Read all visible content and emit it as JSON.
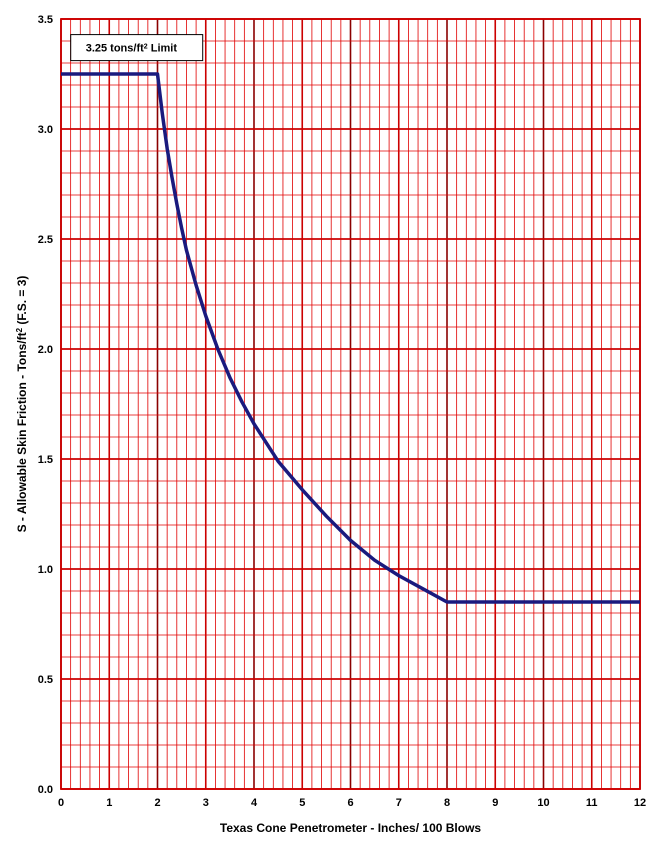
{
  "chart_data": {
    "type": "line",
    "xlabel": "Texas Cone Penetrometer - Inches/ 100 Blows",
    "ylabel_parts": {
      "before_sup1": "S - Allowable Skin Friction - Tons/ft",
      "sup1": "2",
      "after_sup1": " (F.S. = 3)"
    },
    "xlim": [
      0,
      12
    ],
    "ylim": [
      0,
      3.5
    ],
    "x_major_step": 1,
    "x_minor_step": 0.2,
    "y_major_step": 0.5,
    "y_minor_step": 0.1,
    "x_tick_labels": [
      "0",
      "1",
      "2",
      "3",
      "4",
      "5",
      "6",
      "7",
      "8",
      "9",
      "10",
      "11",
      "12"
    ],
    "y_tick_labels": [
      "0.0",
      "0.5",
      "1.0",
      "1.5",
      "2.0",
      "2.5",
      "3.0",
      "3.5"
    ],
    "grid": true,
    "grid_color": "#e00000",
    "grid_major_color": "#cc0000",
    "grid_emphasis_color": "#8b0000",
    "line_color": "#1a1a7e",
    "series": [
      {
        "x": [
          0,
          2,
          2.1,
          2.2,
          2.3,
          2.4,
          2.5,
          2.6,
          2.8,
          3.0,
          3.25,
          3.5,
          3.75,
          4.0,
          4.5,
          5.0,
          5.5,
          6.0,
          6.5,
          7.0,
          7.5,
          8.0,
          12
        ],
        "y": [
          3.25,
          3.25,
          3.07,
          2.91,
          2.78,
          2.66,
          2.55,
          2.45,
          2.29,
          2.15,
          2.0,
          1.87,
          1.76,
          1.66,
          1.49,
          1.36,
          1.24,
          1.13,
          1.04,
          0.97,
          0.91,
          0.85,
          0.85
        ]
      }
    ],
    "annotations": [
      {
        "text_before_sup": "3.25 tons/ft",
        "sup": "2",
        "text_after_sup": " Limit",
        "x": 0.45,
        "y": 3.37
      }
    ]
  }
}
